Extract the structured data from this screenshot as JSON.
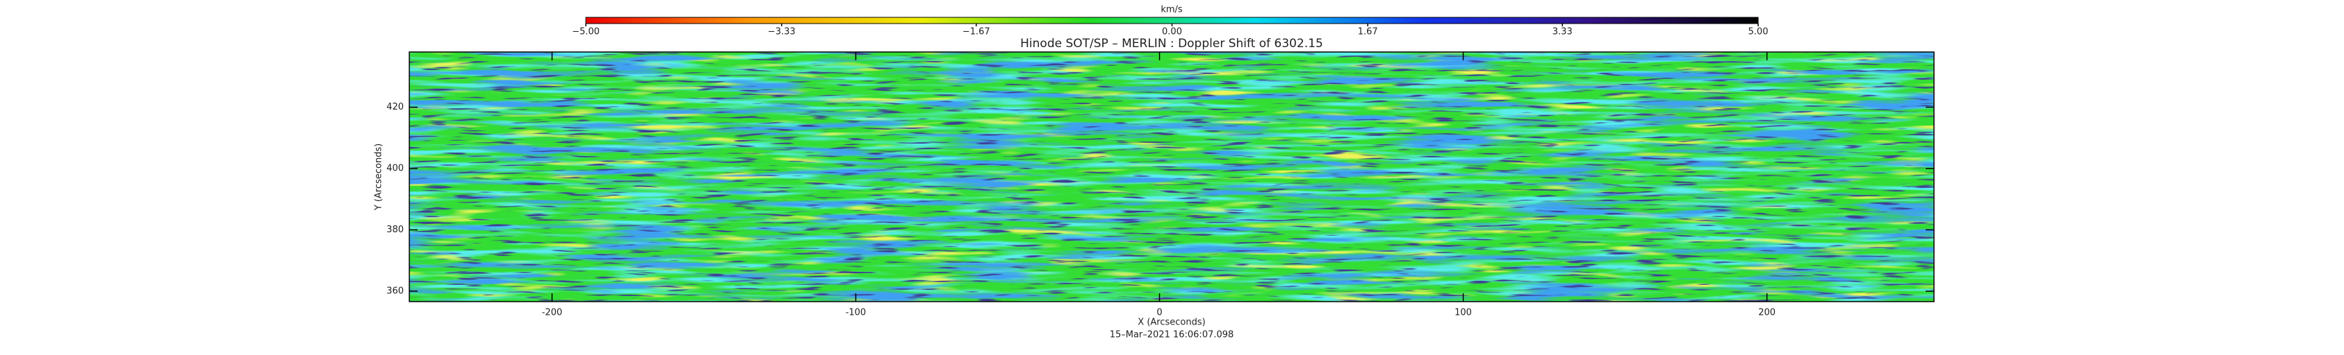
{
  "chart_data": {
    "type": "image",
    "title": "Hinode SOT/SP – MERLIN : Doppler Shift of 6302.15",
    "xlabel": "X (Arcseconds)",
    "ylabel": "Y (Arcseconds)",
    "footnote": "15–Mar–2021 16:06:07.098",
    "xlim": [
      -247,
      255
    ],
    "ylim": [
      356.6,
      438
    ],
    "xticks": [
      -200,
      -100,
      0,
      100,
      200
    ],
    "yticks": [
      360,
      380,
      400,
      420
    ],
    "colorbar": {
      "title": "km/s",
      "lim": [
        -5,
        5
      ],
      "colors": [
        "#ee0000",
        "#ff9900",
        "#eeee00",
        "#22dd22",
        "#00ddee",
        "#1133ee",
        "#331188",
        "#000000"
      ],
      "ticks": [
        {
          "value": -5,
          "label": "−5.00"
        },
        {
          "value": -3.33,
          "label": "−3.33"
        },
        {
          "value": -1.67,
          "label": "−1.67"
        },
        {
          "value": 0,
          "label": "0.00"
        },
        {
          "value": 1.67,
          "label": "1.67"
        },
        {
          "value": 3.33,
          "label": "3.33"
        },
        {
          "value": 5,
          "label": "5.00"
        }
      ]
    }
  }
}
